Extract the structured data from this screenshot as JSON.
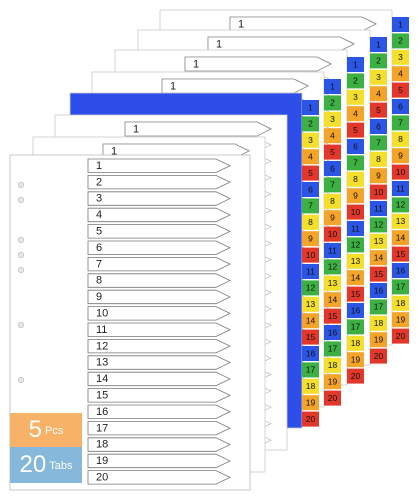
{
  "back_sheets": [
    {
      "label": "1",
      "tabs": [
        "1",
        "2",
        "3",
        "4",
        "5",
        "6",
        "7",
        "8",
        "9",
        "10",
        "11",
        "12",
        "13",
        "14",
        "15",
        "16",
        "17",
        "18",
        "19",
        "20"
      ]
    },
    {
      "label": "1",
      "tabs": [
        "1",
        "2",
        "3",
        "4",
        "5",
        "6",
        "7",
        "8",
        "9",
        "10",
        "11",
        "12",
        "13",
        "14",
        "15",
        "16",
        "17",
        "18",
        "19",
        "20"
      ]
    },
    {
      "label": "1",
      "tabs": [
        "1",
        "2",
        "3",
        "4",
        "5",
        "6",
        "7",
        "8",
        "9",
        "10",
        "11",
        "12",
        "13",
        "14",
        "15",
        "16",
        "17",
        "18",
        "19",
        "20"
      ]
    },
    {
      "label": "1",
      "tabs": [
        "1",
        "2",
        "3",
        "4",
        "5",
        "6",
        "7",
        "8",
        "9",
        "10",
        "11",
        "12",
        "13",
        "14",
        "15",
        "16",
        "17",
        "18",
        "19",
        "20"
      ]
    },
    {
      "tabs": [
        "1",
        "2",
        "3",
        "4",
        "5",
        "6",
        "7",
        "8",
        "9",
        "10",
        "11",
        "12",
        "13",
        "14",
        "15",
        "16",
        "17",
        "18",
        "19",
        "20"
      ]
    },
    {
      "label": "1"
    },
    {
      "label": "1"
    }
  ],
  "front_sheet": {
    "tabs": [
      "1",
      "2",
      "3",
      "4",
      "5",
      "6",
      "7",
      "8",
      "9",
      "10",
      "11",
      "12",
      "13",
      "14",
      "15",
      "16",
      "17",
      "18",
      "19",
      "20"
    ]
  },
  "badges": [
    {
      "number": "5",
      "unit": "Pcs"
    },
    {
      "number": "20",
      "unit": "Tabs"
    }
  ]
}
